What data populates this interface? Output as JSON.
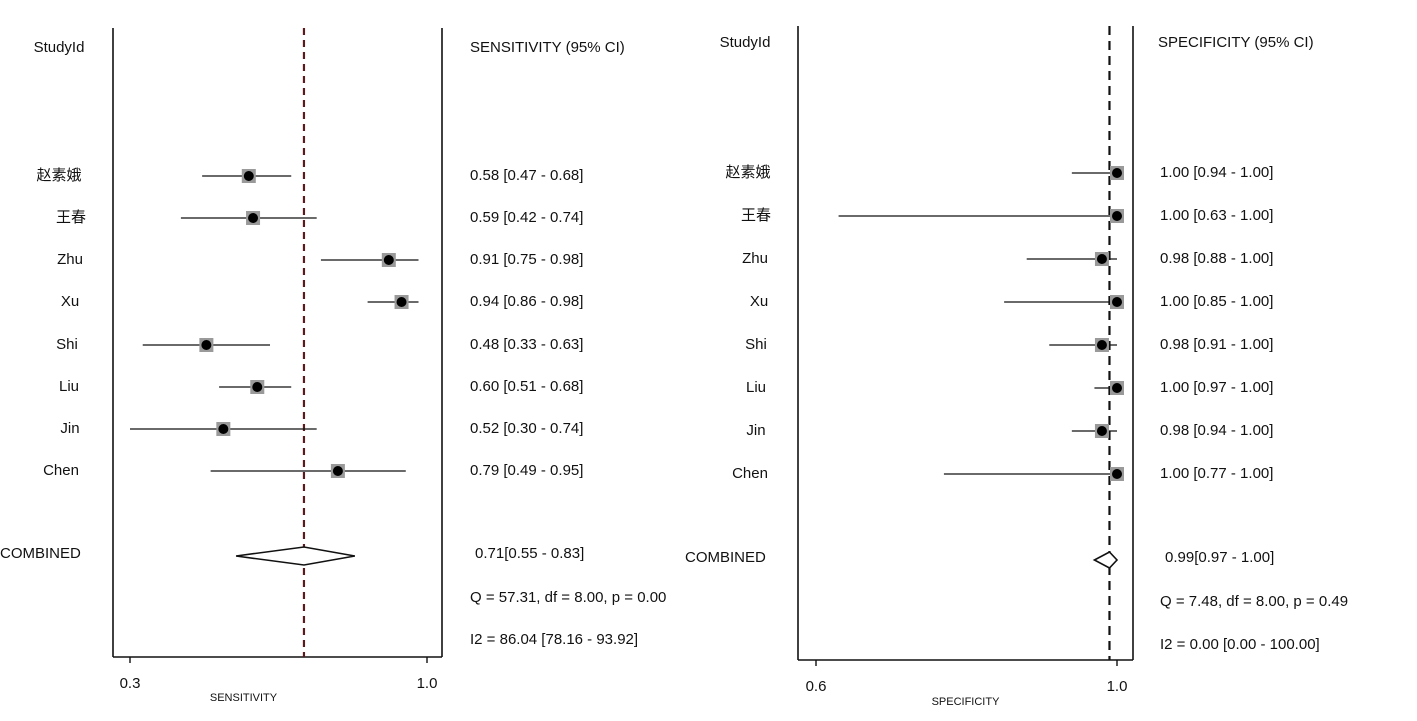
{
  "chart_data": [
    {
      "type": "forest",
      "study_header": "StudyId",
      "ci_header": "SENSITIVITY (95% CI)",
      "xlabel": "SENSITIVITY",
      "xlim": [
        0.3,
        1.0
      ],
      "xticks": [
        "0.3",
        "1.0"
      ],
      "pooled_line": 0.71,
      "studies": [
        {
          "name": "赵素娥",
          "estimate": 0.58,
          "lower": 0.47,
          "upper": 0.68,
          "label": "0.58 [0.47 - 0.68]"
        },
        {
          "name": "王春",
          "estimate": 0.59,
          "lower": 0.42,
          "upper": 0.74,
          "label": "0.59 [0.42 - 0.74]"
        },
        {
          "name": "Zhu",
          "estimate": 0.91,
          "lower": 0.75,
          "upper": 0.98,
          "label": "0.91 [0.75 - 0.98]"
        },
        {
          "name": "Xu",
          "estimate": 0.94,
          "lower": 0.86,
          "upper": 0.98,
          "label": "0.94 [0.86 - 0.98]"
        },
        {
          "name": "Shi",
          "estimate": 0.48,
          "lower": 0.33,
          "upper": 0.63,
          "label": "0.48 [0.33 - 0.63]"
        },
        {
          "name": "Liu",
          "estimate": 0.6,
          "lower": 0.51,
          "upper": 0.68,
          "label": "0.60 [0.51 - 0.68]"
        },
        {
          "name": "Jin",
          "estimate": 0.52,
          "lower": 0.3,
          "upper": 0.74,
          "label": "0.52 [0.30 - 0.74]"
        },
        {
          "name": "Chen",
          "estimate": 0.79,
          "lower": 0.49,
          "upper": 0.95,
          "label": "0.79 [0.49 - 0.95]"
        }
      ],
      "combined": {
        "name": "COMBINED",
        "estimate": 0.71,
        "lower": 0.55,
        "upper": 0.83,
        "label": "0.71[0.55 - 0.83]"
      },
      "heterogeneity_q": "Q = 57.31, df = 8.00, p =  0.00",
      "heterogeneity_i2": "I2 = 86.04 [78.16 - 93.92]"
    },
    {
      "type": "forest",
      "study_header": "StudyId",
      "ci_header": "SPECIFICITY (95% CI)",
      "xlabel": "SPECIFICITY",
      "xlim": [
        0.6,
        1.0
      ],
      "xticks": [
        "0.6",
        "1.0"
      ],
      "pooled_line": 0.99,
      "studies": [
        {
          "name": "赵素娥",
          "estimate": 1.0,
          "lower": 0.94,
          "upper": 1.0,
          "label": "1.00 [0.94 - 1.00]"
        },
        {
          "name": "王春",
          "estimate": 1.0,
          "lower": 0.63,
          "upper": 1.0,
          "label": "1.00 [0.63 - 1.00]"
        },
        {
          "name": "Zhu",
          "estimate": 0.98,
          "lower": 0.88,
          "upper": 1.0,
          "label": "0.98 [0.88 - 1.00]"
        },
        {
          "name": "Xu",
          "estimate": 1.0,
          "lower": 0.85,
          "upper": 1.0,
          "label": "1.00 [0.85 - 1.00]"
        },
        {
          "name": "Shi",
          "estimate": 0.98,
          "lower": 0.91,
          "upper": 1.0,
          "label": "0.98 [0.91 - 1.00]"
        },
        {
          "name": "Liu",
          "estimate": 1.0,
          "lower": 0.97,
          "upper": 1.0,
          "label": "1.00 [0.97 - 1.00]"
        },
        {
          "name": "Jin",
          "estimate": 0.98,
          "lower": 0.94,
          "upper": 1.0,
          "label": "0.98 [0.94 - 1.00]"
        },
        {
          "name": "Chen",
          "estimate": 1.0,
          "lower": 0.77,
          "upper": 1.0,
          "label": "1.00 [0.77 - 1.00]"
        }
      ],
      "combined": {
        "name": "COMBINED",
        "estimate": 0.99,
        "lower": 0.97,
        "upper": 1.0,
        "label": "0.99[0.97 - 1.00]"
      },
      "heterogeneity_q": "Q =  7.48, df = 8.00, p =  0.49",
      "heterogeneity_i2": "I2 = 0.00 [0.00 - 100.00]"
    }
  ],
  "colors": {
    "ink": "#111111",
    "marker_box": "#9a9a9a",
    "marker_dot": "#000000",
    "reference_line_left": "#5a1a1f",
    "reference_line_right": "#111111"
  }
}
